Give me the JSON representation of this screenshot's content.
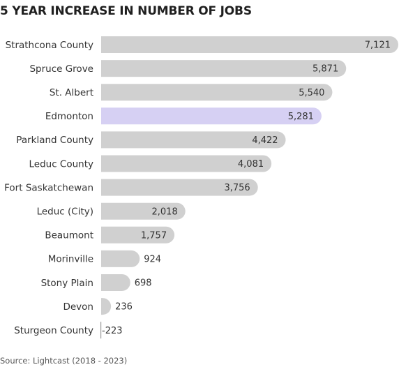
{
  "chart_data": {
    "type": "bar",
    "orientation": "horizontal",
    "title": "5 YEAR INCREASE IN NUMBER OF JOBS",
    "source": "Source: Lightcast (2018 - 2023)",
    "categories": [
      "Strathcona County",
      "Spruce Grove",
      "St. Albert",
      "Edmonton",
      "Parkland County",
      "Leduc County",
      "Fort Saskatchewan",
      "Leduc (City)",
      "Beaumont",
      "Morinville",
      "Stony Plain",
      "Devon",
      "Sturgeon County"
    ],
    "values": [
      7121,
      5871,
      5540,
      5281,
      4422,
      4081,
      3756,
      2018,
      1757,
      924,
      698,
      236,
      -223
    ],
    "value_labels": [
      "7,121",
      "5,871",
      "5,540",
      "5,281",
      "4,422",
      "4,081",
      "3,756",
      "2,018",
      "1,757",
      "924",
      "698",
      "236",
      "-223"
    ],
    "highlight": "Edmonton",
    "xlim": [
      0,
      7121
    ],
    "grid": false,
    "legend": "none",
    "colors": {
      "bar": "#d0d0d0",
      "highlight": "#d6d0f3",
      "text": "#333333"
    }
  }
}
